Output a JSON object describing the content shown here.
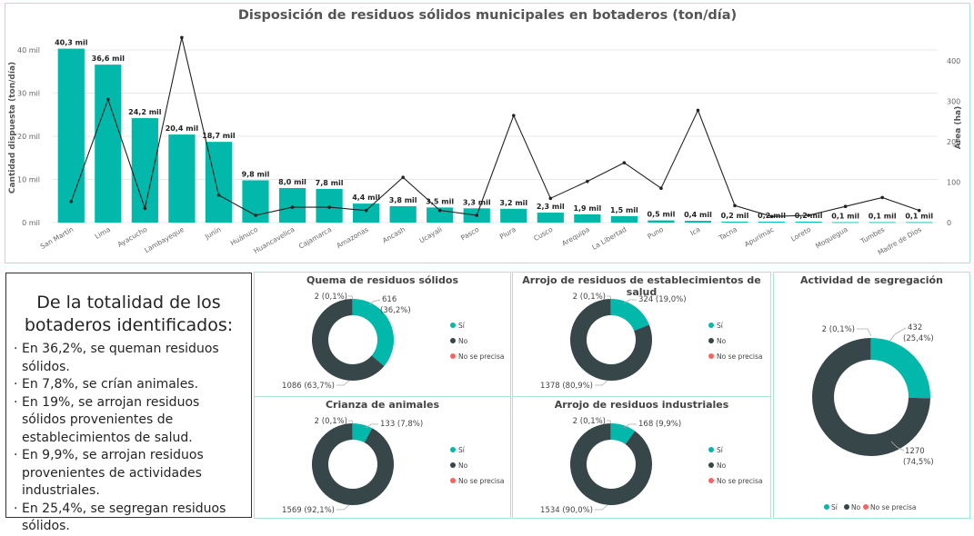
{
  "colors": {
    "teal": "#01b8aa",
    "dark": "#374649",
    "red": "#fd625e",
    "line": "#222222",
    "grid": "#e8e8e8"
  },
  "chart_data": [
    {
      "type": "bar",
      "title": "Disposición de residuos sólidos municipales en botaderos (ton/día)",
      "ylabel": "Cantidad dispuesta (ton/día)",
      "y2label": "Área (ha)",
      "ylim": [
        0,
        44
      ],
      "y2lim": [
        0,
        470
      ],
      "yticks": [
        "0 mil",
        "10 mil",
        "20 mil",
        "30 mil",
        "40 mil"
      ],
      "y2ticks": [
        "0",
        "100",
        "200",
        "300",
        "400"
      ],
      "categories": [
        "San Martín",
        "Lima",
        "Ayacucho",
        "Lambayeque",
        "Junín",
        "Huánuco",
        "Huancavelica",
        "Cajamarca",
        "Amazonas",
        "Ancash",
        "Ucayali",
        "Pasco",
        "Piura",
        "Cusco",
        "Arequipa",
        "La Libertad",
        "Puno",
        "Ica",
        "Tacna",
        "Apurímac",
        "Loreto",
        "Moquegua",
        "Tumbes",
        "Madre de Dios"
      ],
      "series": [
        {
          "name": "Cantidad dispuesta (ton/día)",
          "kind": "bar",
          "values": [
            40.3,
            36.6,
            24.2,
            20.4,
            18.7,
            9.8,
            8.0,
            7.8,
            4.4,
            3.8,
            3.5,
            3.3,
            3.2,
            2.3,
            1.9,
            1.5,
            0.5,
            0.4,
            0.2,
            0.2,
            0.2,
            0.1,
            0.1,
            0.1
          ],
          "labels": [
            "40,3 mil",
            "36,6 mil",
            "24,2 mil",
            "20,4 mil",
            "18,7 mil",
            "9,8 mil",
            "8,0 mil",
            "7,8 mil",
            "4,4 mil",
            "3,8 mil",
            "3,5 mil",
            "3,3 mil",
            "3,2 mil",
            "2,3 mil",
            "1,9 mil",
            "1,5 mil",
            "0,5 mil",
            "0,4 mil",
            "0,2 mil",
            "0,2 mil",
            "0,2 mil",
            "0,1 mil",
            "0,1 mil",
            "0,1 mil"
          ]
        },
        {
          "name": "Área (ha)",
          "kind": "line",
          "values": [
            52,
            305,
            35,
            458,
            68,
            18,
            38,
            38,
            30,
            112,
            30,
            18,
            265,
            60,
            102,
            148,
            85,
            278,
            42,
            15,
            18,
            40,
            62,
            30
          ]
        }
      ]
    },
    {
      "type": "pie",
      "title": "Quema de residuos sólidos",
      "slices": [
        {
          "name": "Sí",
          "value": 616,
          "label": "616",
          "label2": "(36,2%)"
        },
        {
          "name": "No",
          "value": 1086,
          "label": "1086 (63,7%)"
        },
        {
          "name": "No se precisa",
          "value": 2,
          "label": "2 (0,1%)"
        }
      ]
    },
    {
      "type": "pie",
      "title": "Arrojo de residuos de establecimientos de salud",
      "slices": [
        {
          "name": "Sí",
          "value": 324,
          "label": "324 (19,0%)"
        },
        {
          "name": "No",
          "value": 1378,
          "label": "1378 (80,9%)"
        },
        {
          "name": "No se precisa",
          "value": 2,
          "label": "2 (0,1%)"
        }
      ]
    },
    {
      "type": "pie",
      "title": "Actividad de segregación",
      "slices": [
        {
          "name": "Sí",
          "value": 432,
          "label": "432",
          "label2": "(25,4%)"
        },
        {
          "name": "No",
          "value": 1270,
          "label": "1270",
          "label2": "(74,5%)"
        },
        {
          "name": "No se precisa",
          "value": 2,
          "label": "2 (0,1%)"
        }
      ]
    },
    {
      "type": "pie",
      "title": "Crianza de animales",
      "slices": [
        {
          "name": "Sí",
          "value": 133,
          "label": "133 (7,8%)"
        },
        {
          "name": "No",
          "value": 1569,
          "label": "1569 (92,1%)"
        },
        {
          "name": "No se precisa",
          "value": 2,
          "label": "2 (0,1%)"
        }
      ]
    },
    {
      "type": "pie",
      "title": "Arrojo de residuos industriales",
      "slices": [
        {
          "name": "Sí",
          "value": 168,
          "label": "168 (9,9%)"
        },
        {
          "name": "No",
          "value": 1534,
          "label": "1534 (90,0%)"
        },
        {
          "name": "No se precisa",
          "value": 2,
          "label": "2 (0,1%)"
        }
      ]
    }
  ],
  "legend": [
    "Sí",
    "No",
    "No se precisa"
  ],
  "summary": {
    "heading": "De la totalidad de los botaderos identificados:",
    "items": [
      "En 36,2%, se queman residuos sólidos.",
      "En 7,8%, se crían animales.",
      "En 19%, se arrojan residuos sólidos provenientes de establecimientos de salud.",
      "En 9,9%, se arrojan residuos provenientes de actividades industriales.",
      "En 25,4%, se segregan residuos sólidos."
    ]
  }
}
